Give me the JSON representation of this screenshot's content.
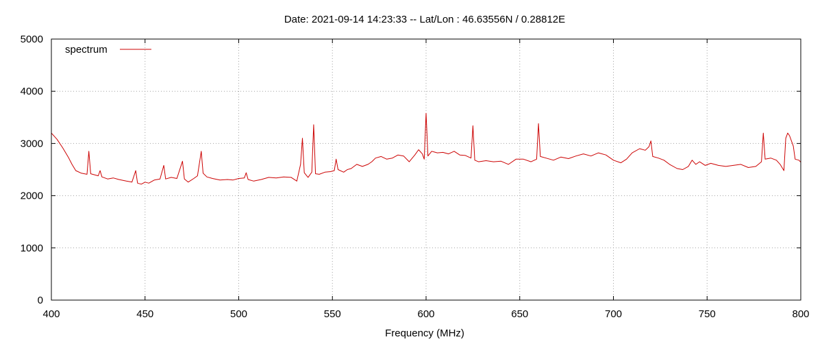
{
  "chart_data": {
    "type": "line",
    "title": "Date: 2021-09-14 14:23:33  --  Lat/Lon : 46.63556N / 0.28812E",
    "xlabel": "Frequency (MHz)",
    "ylabel": "",
    "xlim": [
      400,
      800
    ],
    "ylim": [
      0,
      5000
    ],
    "xticks": [
      400,
      450,
      500,
      550,
      600,
      650,
      700,
      750,
      800
    ],
    "yticks": [
      0,
      1000,
      2000,
      3000,
      4000,
      5000
    ],
    "grid": true,
    "legend_position": "top-left",
    "series": [
      {
        "name": "spectrum",
        "color": "#cc0000",
        "points": [
          [
            400,
            3200
          ],
          [
            403,
            3080
          ],
          [
            406,
            2920
          ],
          [
            409,
            2740
          ],
          [
            411,
            2600
          ],
          [
            413,
            2480
          ],
          [
            416,
            2430
          ],
          [
            419,
            2410
          ],
          [
            420,
            2850
          ],
          [
            421,
            2420
          ],
          [
            423,
            2400
          ],
          [
            425,
            2380
          ],
          [
            426,
            2480
          ],
          [
            427,
            2360
          ],
          [
            430,
            2320
          ],
          [
            433,
            2340
          ],
          [
            436,
            2310
          ],
          [
            440,
            2280
          ],
          [
            443,
            2260
          ],
          [
            445,
            2480
          ],
          [
            446,
            2240
          ],
          [
            448,
            2220
          ],
          [
            450,
            2260
          ],
          [
            452,
            2240
          ],
          [
            455,
            2300
          ],
          [
            458,
            2320
          ],
          [
            460,
            2580
          ],
          [
            461,
            2320
          ],
          [
            464,
            2350
          ],
          [
            467,
            2330
          ],
          [
            470,
            2660
          ],
          [
            471,
            2320
          ],
          [
            473,
            2260
          ],
          [
            476,
            2330
          ],
          [
            478,
            2380
          ],
          [
            480,
            2850
          ],
          [
            481,
            2430
          ],
          [
            483,
            2360
          ],
          [
            486,
            2330
          ],
          [
            490,
            2300
          ],
          [
            494,
            2310
          ],
          [
            497,
            2300
          ],
          [
            500,
            2330
          ],
          [
            503,
            2340
          ],
          [
            504,
            2440
          ],
          [
            505,
            2310
          ],
          [
            508,
            2280
          ],
          [
            512,
            2310
          ],
          [
            516,
            2350
          ],
          [
            520,
            2340
          ],
          [
            524,
            2360
          ],
          [
            528,
            2350
          ],
          [
            531,
            2280
          ],
          [
            533,
            2600
          ],
          [
            534,
            3100
          ],
          [
            535,
            2440
          ],
          [
            537,
            2350
          ],
          [
            539,
            2450
          ],
          [
            540,
            3360
          ],
          [
            541,
            2420
          ],
          [
            543,
            2410
          ],
          [
            546,
            2450
          ],
          [
            549,
            2460
          ],
          [
            551,
            2480
          ],
          [
            552,
            2700
          ],
          [
            553,
            2500
          ],
          [
            556,
            2450
          ],
          [
            558,
            2500
          ],
          [
            560,
            2520
          ],
          [
            563,
            2600
          ],
          [
            566,
            2560
          ],
          [
            569,
            2600
          ],
          [
            571,
            2650
          ],
          [
            573,
            2720
          ],
          [
            576,
            2750
          ],
          [
            579,
            2700
          ],
          [
            582,
            2720
          ],
          [
            585,
            2780
          ],
          [
            588,
            2760
          ],
          [
            591,
            2650
          ],
          [
            594,
            2780
          ],
          [
            596,
            2880
          ],
          [
            598,
            2800
          ],
          [
            599,
            2700
          ],
          [
            600,
            3580
          ],
          [
            601,
            2760
          ],
          [
            603,
            2850
          ],
          [
            606,
            2820
          ],
          [
            609,
            2830
          ],
          [
            612,
            2800
          ],
          [
            615,
            2850
          ],
          [
            618,
            2780
          ],
          [
            621,
            2770
          ],
          [
            624,
            2720
          ],
          [
            625,
            3340
          ],
          [
            626,
            2680
          ],
          [
            628,
            2650
          ],
          [
            632,
            2670
          ],
          [
            636,
            2650
          ],
          [
            640,
            2660
          ],
          [
            644,
            2600
          ],
          [
            648,
            2700
          ],
          [
            652,
            2700
          ],
          [
            656,
            2650
          ],
          [
            659,
            2700
          ],
          [
            660,
            3380
          ],
          [
            661,
            2750
          ],
          [
            664,
            2720
          ],
          [
            668,
            2680
          ],
          [
            672,
            2740
          ],
          [
            676,
            2710
          ],
          [
            680,
            2760
          ],
          [
            684,
            2800
          ],
          [
            688,
            2760
          ],
          [
            692,
            2820
          ],
          [
            696,
            2780
          ],
          [
            700,
            2680
          ],
          [
            704,
            2630
          ],
          [
            707,
            2700
          ],
          [
            710,
            2820
          ],
          [
            714,
            2900
          ],
          [
            717,
            2870
          ],
          [
            719,
            2940
          ],
          [
            720,
            3050
          ],
          [
            721,
            2750
          ],
          [
            724,
            2720
          ],
          [
            727,
            2680
          ],
          [
            730,
            2600
          ],
          [
            734,
            2520
          ],
          [
            737,
            2500
          ],
          [
            740,
            2560
          ],
          [
            742,
            2680
          ],
          [
            744,
            2600
          ],
          [
            746,
            2650
          ],
          [
            749,
            2580
          ],
          [
            752,
            2620
          ],
          [
            756,
            2580
          ],
          [
            760,
            2560
          ],
          [
            764,
            2580
          ],
          [
            768,
            2600
          ],
          [
            772,
            2540
          ],
          [
            776,
            2560
          ],
          [
            779,
            2650
          ],
          [
            780,
            3200
          ],
          [
            781,
            2700
          ],
          [
            784,
            2720
          ],
          [
            787,
            2680
          ],
          [
            789,
            2600
          ],
          [
            791,
            2480
          ],
          [
            792,
            3100
          ],
          [
            793,
            3200
          ],
          [
            794,
            3150
          ],
          [
            796,
            2950
          ],
          [
            797,
            2700
          ],
          [
            799,
            2680
          ],
          [
            800,
            2640
          ]
        ]
      }
    ]
  }
}
